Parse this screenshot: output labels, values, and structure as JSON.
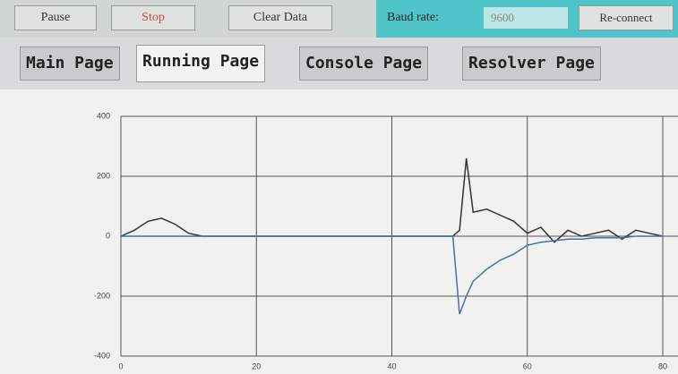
{
  "toolbar": {
    "buttons": [
      "Pause",
      "Stop",
      "Clear Data"
    ],
    "baud_label": "Baud rate:",
    "baud_value": "9600",
    "reconnect": "Re-connect"
  },
  "tabs": [
    "Main Page",
    "Running Page",
    "Console Page",
    "Resolver Page"
  ],
  "chart_data": {
    "type": "line",
    "x": [
      0,
      2,
      4,
      6,
      8,
      10,
      12,
      20,
      30,
      40,
      48,
      49,
      50,
      51,
      52,
      54,
      56,
      58,
      60,
      62,
      64,
      66,
      68,
      70,
      72,
      74,
      76,
      78,
      80
    ],
    "series": [
      {
        "color": "#333333",
        "values": [
          0,
          20,
          50,
          60,
          40,
          10,
          0,
          0,
          0,
          0,
          0,
          0,
          20,
          260,
          80,
          90,
          70,
          50,
          10,
          30,
          -20,
          20,
          0,
          10,
          20,
          -10,
          20,
          10,
          0
        ]
      },
      {
        "color": "#4a6fa8",
        "values": [
          0,
          0,
          0,
          0,
          0,
          0,
          0,
          0,
          0,
          0,
          0,
          0,
          -260,
          -200,
          -150,
          -110,
          -80,
          -60,
          -30,
          -20,
          -15,
          -10,
          -10,
          -5,
          -5,
          -5,
          0,
          0,
          0
        ]
      }
    ],
    "xlim": [
      0,
      80
    ],
    "xticks": [
      0,
      20,
      40,
      60,
      80
    ],
    "ylim": [
      -400,
      400
    ],
    "yticks": [
      -400,
      -200,
      0,
      200,
      400
    ],
    "grid": true
  }
}
